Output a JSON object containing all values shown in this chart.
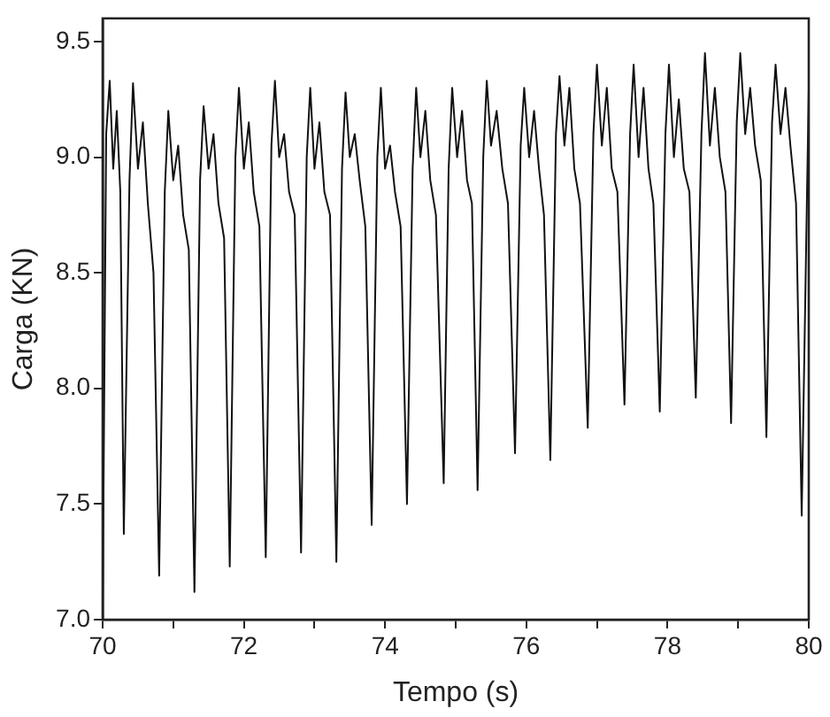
{
  "chart_data": {
    "type": "line",
    "xlabel": "Tempo (s)",
    "ylabel": "Carga (KN)",
    "xlim": [
      70,
      80
    ],
    "xticks": [
      70,
      {
        "value": 71,
        "label": null
      },
      72,
      {
        "value": 73,
        "label": null
      },
      74,
      {
        "value": 75,
        "label": null
      },
      76,
      {
        "value": 77,
        "label": null
      },
      78,
      {
        "value": 79,
        "label": null
      },
      80
    ],
    "ylim": [
      7.0,
      9.6
    ],
    "yticks": [
      {
        "value": 7.0,
        "label": "7.0"
      },
      {
        "value": 7.5,
        "label": "7.5"
      },
      {
        "value": 8.0,
        "label": "8.0"
      },
      {
        "value": 8.5,
        "label": "8.5"
      },
      {
        "value": 9.0,
        "label": "9.0"
      },
      {
        "value": 9.5,
        "label": "9.5"
      }
    ],
    "grid": false,
    "legend": false,
    "marker": "none",
    "line_style": "solid",
    "series": [
      {
        "color": "#111111",
        "x": [
          70.0,
          70.05,
          70.1,
          70.15,
          70.2,
          70.25,
          70.3,
          70.38,
          70.43,
          70.5,
          70.57,
          70.64,
          70.72,
          70.8,
          70.88,
          70.93,
          71.0,
          71.07,
          71.14,
          71.22,
          71.3,
          71.38,
          71.43,
          71.5,
          71.57,
          71.64,
          71.72,
          71.8,
          71.88,
          71.93,
          72.0,
          72.07,
          72.14,
          72.22,
          72.31,
          72.39,
          72.44,
          72.5,
          72.57,
          72.64,
          72.72,
          72.81,
          72.89,
          72.94,
          73.0,
          73.07,
          73.14,
          73.22,
          73.31,
          73.39,
          73.44,
          73.5,
          73.57,
          73.64,
          73.72,
          73.81,
          73.89,
          73.94,
          74.0,
          74.07,
          74.14,
          74.22,
          74.31,
          74.39,
          74.44,
          74.5,
          74.57,
          74.64,
          74.72,
          74.83,
          74.9,
          74.95,
          75.02,
          75.09,
          75.16,
          75.23,
          75.31,
          75.39,
          75.44,
          75.5,
          75.58,
          75.66,
          75.74,
          75.84,
          75.92,
          75.97,
          76.04,
          76.11,
          76.18,
          76.25,
          76.34,
          76.42,
          76.47,
          76.54,
          76.61,
          76.68,
          76.76,
          76.87,
          76.95,
          77.0,
          77.07,
          77.14,
          77.21,
          77.29,
          77.39,
          77.47,
          77.52,
          77.59,
          77.66,
          77.73,
          77.8,
          77.89,
          77.97,
          78.02,
          78.09,
          78.16,
          78.23,
          78.31,
          78.4,
          78.48,
          78.53,
          78.6,
          78.67,
          78.74,
          78.82,
          78.9,
          78.98,
          79.03,
          79.1,
          79.17,
          79.24,
          79.32,
          79.4,
          79.48,
          79.53,
          79.6,
          79.67,
          79.74,
          79.82,
          79.9,
          80.0
        ],
        "values": [
          7.05,
          9.1,
          9.33,
          8.95,
          9.2,
          8.85,
          7.37,
          8.9,
          9.32,
          8.95,
          9.15,
          8.8,
          8.5,
          7.19,
          8.85,
          9.2,
          8.9,
          9.05,
          8.75,
          8.6,
          7.12,
          8.9,
          9.22,
          8.95,
          9.1,
          8.8,
          8.65,
          7.23,
          9.0,
          9.3,
          8.95,
          9.15,
          8.85,
          8.7,
          7.27,
          9.05,
          9.33,
          9.0,
          9.1,
          8.85,
          8.75,
          7.29,
          9.0,
          9.3,
          8.95,
          9.15,
          8.85,
          8.75,
          7.25,
          8.95,
          9.28,
          9.0,
          9.1,
          8.9,
          8.7,
          7.41,
          9.0,
          9.3,
          8.95,
          9.05,
          8.85,
          8.7,
          7.5,
          8.95,
          9.3,
          9.0,
          9.2,
          8.9,
          8.75,
          7.59,
          8.95,
          9.3,
          9.0,
          9.2,
          8.9,
          8.8,
          7.56,
          9.0,
          9.33,
          9.05,
          9.2,
          8.95,
          8.8,
          7.72,
          9.05,
          9.3,
          9.0,
          9.2,
          8.95,
          8.75,
          7.69,
          9.1,
          9.35,
          9.05,
          9.3,
          8.95,
          8.8,
          7.83,
          9.1,
          9.4,
          9.05,
          9.3,
          8.95,
          8.85,
          7.93,
          9.1,
          9.4,
          9.0,
          9.3,
          8.95,
          8.8,
          7.9,
          9.1,
          9.4,
          9.0,
          9.25,
          8.95,
          8.85,
          7.96,
          9.1,
          9.45,
          9.05,
          9.3,
          9.0,
          8.85,
          7.85,
          9.15,
          9.45,
          9.1,
          9.3,
          9.05,
          8.9,
          7.79,
          9.15,
          9.4,
          9.1,
          9.3,
          9.05,
          8.8,
          7.45,
          9.3
        ]
      }
    ]
  }
}
